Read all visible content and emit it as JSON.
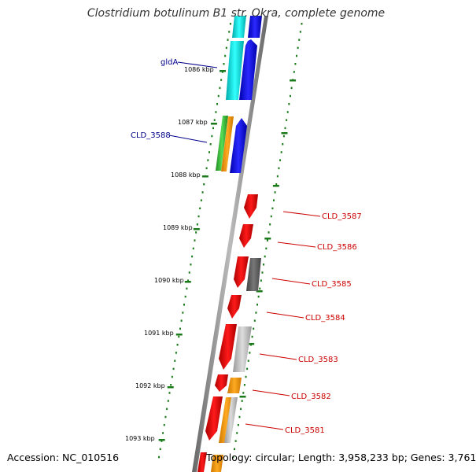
{
  "title": "Clostridium botulinum B1 str. Okra, complete genome",
  "footer": {
    "accession": "Accession: NC_010516",
    "summary": "Topology: circular; Length: 3,958,233 bp; Genes: 3,761"
  },
  "ticks": [
    "1086 kbp",
    "1087 kbp",
    "1088 kbp",
    "1089 kbp",
    "1090 kbp",
    "1091 kbp",
    "1092 kbp",
    "1093 kbp"
  ],
  "gene_labels": [
    {
      "text": "gldA",
      "color": "#00008b"
    },
    {
      "text": "CLD_3588",
      "color": "#00008b"
    },
    {
      "text": "CLD_3587",
      "color": "#cc0000"
    },
    {
      "text": "CLD_3586",
      "color": "#cc0000"
    },
    {
      "text": "CLD_3585",
      "color": "#cc0000"
    },
    {
      "text": "CLD_3584",
      "color": "#cc0000"
    },
    {
      "text": "CLD_3583",
      "color": "#cc0000"
    },
    {
      "text": "CLD_3582",
      "color": "#cc0000"
    },
    {
      "text": "CLD_3581",
      "color": "#cc0000"
    }
  ],
  "colors": {
    "backbone": "#888888",
    "tick_marks": "#1a7a1a",
    "forward_gene": "#0000ee",
    "reverse_gene": "#ee0000",
    "cyan_feature": "#00dddd",
    "green_feature": "#33bb33",
    "orange_feature": "#ff9900",
    "gray_feature": "#aaaaaa",
    "dark_gray_feature": "#555555"
  }
}
